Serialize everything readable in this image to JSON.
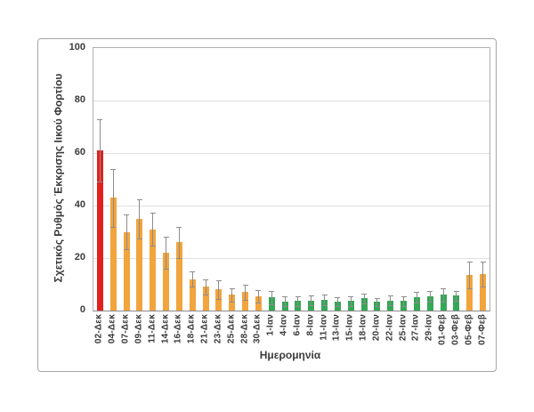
{
  "figure": {
    "background": "#FFFFFF",
    "border_color": "#A6A6A6"
  },
  "chart_data": {
    "type": "bar",
    "title": "",
    "xlabel": "Ημερομηνία",
    "ylabel": "Σχετικός Ρυθμός Έκκρισης Ιικού Φορτίου",
    "ylim": [
      0,
      100
    ],
    "grid": true,
    "legend": false,
    "error_bars": true,
    "y_ticks": [
      0,
      20,
      40,
      60,
      80,
      100
    ],
    "categories": [
      "02-Δεκ",
      "04-Δεκ",
      "07-Δεκ",
      "09-Δεκ",
      "11-Δεκ",
      "14-Δεκ",
      "16-Δεκ",
      "18-Δεκ",
      "21-Δεκ",
      "23-Δεκ",
      "25-Δεκ",
      "28-Δεκ",
      "30-Δεκ",
      "1-Ιαν",
      "4-Ιαν",
      "6-Ιαν",
      "8-Ιαν",
      "11-Ιαν",
      "13-Ιαν",
      "15-Ιαν",
      "18-Ιαν",
      "20-Ιαν",
      "22-Ιαν",
      "25-Ιαν",
      "27-Ιαν",
      "29-Ιαν",
      "01-Φεβ",
      "03-Φεβ",
      "05-Φεβ",
      "07-Φεβ"
    ],
    "values": [
      61,
      43,
      30,
      35,
      31,
      22,
      26,
      12,
      9,
      8,
      6,
      7,
      5.5,
      5,
      3.5,
      3.6,
      3.8,
      4,
      3.4,
      3.6,
      4.6,
      3.3,
      3.8,
      3.6,
      5,
      5.5,
      6,
      5.6,
      13.5,
      14
    ],
    "errors": [
      12,
      11,
      6.5,
      7.5,
      6.3,
      6,
      6,
      3,
      3,
      3.5,
      2.5,
      2.8,
      2.3,
      2.5,
      1.8,
      1.8,
      1.8,
      2,
      1.8,
      1.8,
      2,
      1.5,
      1.8,
      1.8,
      2,
      2,
      2.5,
      2,
      5,
      4.8
    ],
    "bar_colors": [
      "red",
      "orange",
      "orange",
      "orange",
      "orange",
      "orange",
      "orange",
      "orange",
      "orange",
      "orange",
      "orange",
      "orange",
      "orange",
      "green",
      "green",
      "green",
      "green",
      "green",
      "green",
      "green",
      "green",
      "green",
      "green",
      "green",
      "green",
      "green",
      "green",
      "green",
      "orange",
      "orange"
    ],
    "palette": {
      "red": "#E2201C",
      "orange": "#F2A43D",
      "green": "#35A756",
      "error_bar": "#8C8C8C",
      "gridline": "#E0E0E0",
      "frame": "#A6A6A6",
      "text": "#3A3A3A"
    }
  }
}
